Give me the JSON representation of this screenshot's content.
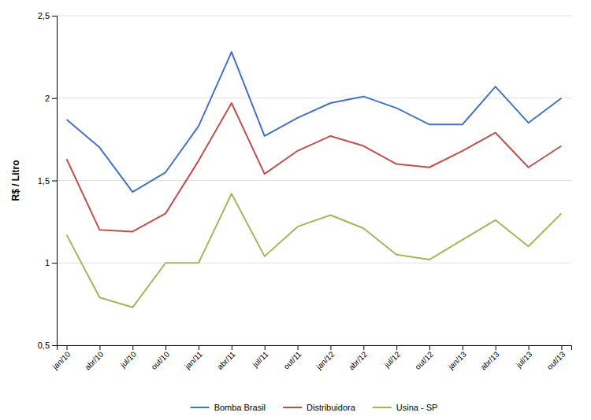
{
  "chart_data": {
    "type": "line",
    "ylabel": "R$ / Litro",
    "categories": [
      "jan/10",
      "abr/10",
      "jul/10",
      "out/10",
      "jan/11",
      "abr/11",
      "jul/11",
      "out/11",
      "jan/12",
      "abr/12",
      "jul/12",
      "out/12",
      "jan/13",
      "abr/13",
      "jul/13",
      "out/13"
    ],
    "series": [
      {
        "name": "Bomba Brasil",
        "color": "#4472C4",
        "values": [
          1.87,
          1.7,
          1.43,
          1.55,
          1.83,
          2.28,
          1.77,
          1.88,
          1.97,
          2.01,
          1.94,
          1.84,
          1.84,
          2.07,
          1.85,
          2.0
        ]
      },
      {
        "name": "Distribuidora",
        "color": "#C0504D",
        "values": [
          1.63,
          1.2,
          1.19,
          1.3,
          1.62,
          1.97,
          1.54,
          1.68,
          1.77,
          1.71,
          1.6,
          1.58,
          1.68,
          1.79,
          1.58,
          1.71
        ]
      },
      {
        "name": "Usina - SP",
        "color": "#9BBB59",
        "values": [
          1.17,
          0.79,
          0.73,
          1.0,
          1.0,
          1.42,
          1.04,
          1.22,
          1.29,
          1.21,
          1.05,
          1.02,
          1.14,
          1.26,
          1.1,
          1.3
        ]
      }
    ],
    "ylim": [
      0.5,
      2.5
    ],
    "yticks": [
      {
        "value": 0.5,
        "label": "0,5"
      },
      1,
      {
        "value": 1.5,
        "label": "1,5"
      },
      2,
      {
        "value": 2.5,
        "label": "2,5"
      }
    ],
    "grid": true,
    "legend": "bottom"
  }
}
